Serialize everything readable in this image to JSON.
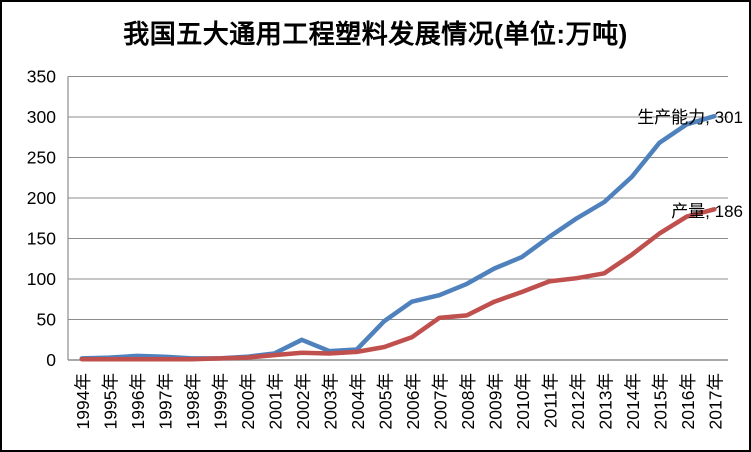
{
  "chart_data": {
    "type": "line",
    "title": "我国五大通用工程塑料发展情况(单位:万吨)",
    "x_categories": [
      "1994年",
      "1995年",
      "1996年",
      "1997年",
      "1998年",
      "1999年",
      "2000年",
      "2001年",
      "2002年",
      "2003年",
      "2004年",
      "2005年",
      "2006年",
      "2007年",
      "2008年",
      "2009年",
      "2010年",
      "2011年",
      "2012年",
      "2013年",
      "2014年",
      "2015年",
      "2016年",
      "2017年"
    ],
    "series": [
      {
        "name": "生产能力",
        "color": "#4F81BD",
        "end_label": "生产能力, 301",
        "values": [
          2,
          3,
          5,
          4,
          2,
          2,
          4,
          8,
          25,
          11,
          13,
          48,
          72,
          80,
          94,
          113,
          127,
          152,
          175,
          195,
          226,
          268,
          291,
          301
        ]
      },
      {
        "name": "产量",
        "color": "#C0504D",
        "end_label": "产量, 186",
        "values": [
          1,
          1,
          1,
          1,
          1,
          2,
          3,
          6,
          9,
          8,
          10,
          16,
          28,
          52,
          55,
          72,
          84,
          97,
          101,
          107,
          130,
          156,
          177,
          186
        ]
      }
    ],
    "ylim": [
      0,
      350
    ],
    "yticks": [
      0,
      50,
      100,
      150,
      200,
      250,
      300,
      350
    ],
    "xlabel": "",
    "ylabel": "",
    "grid": "horizontal",
    "legend_position": "none (series labeled at line ends)",
    "grid_color": "#8C8C8C",
    "axis_color": "#8C8C8C",
    "text_color": "#000000"
  }
}
